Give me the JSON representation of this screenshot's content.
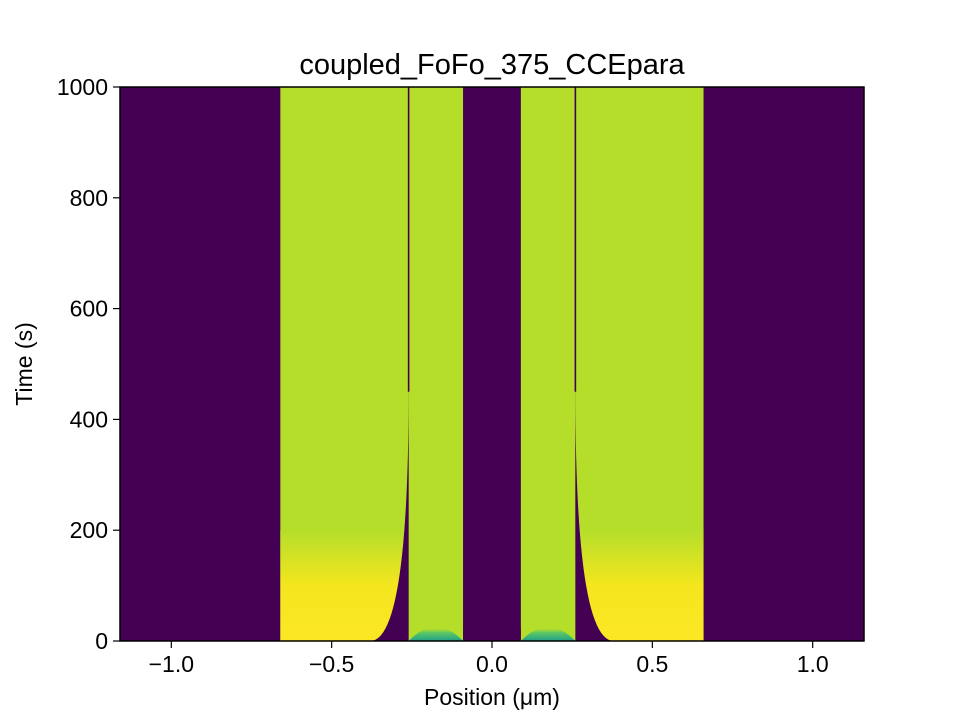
{
  "chart_data": {
    "type": "heatmap",
    "title": "coupled_FoFo_375_CCEpara",
    "xlabel": "Position (μm)",
    "ylabel": "Time (s)",
    "xlim": [
      -1.16,
      1.16
    ],
    "ylim": [
      0,
      1000
    ],
    "xticks": [
      -1.0,
      -0.5,
      0.0,
      0.5,
      1.0
    ],
    "xtick_labels": [
      "−1.0",
      "−0.5",
      "0.0",
      "0.5",
      "1.0"
    ],
    "yticks": [
      0,
      200,
      400,
      600,
      800,
      1000
    ],
    "ytick_labels": [
      "0",
      "200",
      "400",
      "600",
      "800",
      "1000"
    ],
    "grid": false,
    "colormap": "viridis",
    "colors": {
      "background_region": "#440154",
      "filled_region": "#b5de2b",
      "early_time_peak": "#fde725",
      "transition_dip": "#1f9e89"
    },
    "regions": [
      {
        "x_range": [
          -1.16,
          -0.66
        ],
        "level": "low"
      },
      {
        "x_range": [
          -0.66,
          -0.26
        ],
        "level": "high",
        "early_time_peak": true
      },
      {
        "x_range": [
          -0.26,
          -0.09
        ],
        "level": "high"
      },
      {
        "x_range": [
          -0.09,
          0.09
        ],
        "level": "low"
      },
      {
        "x_range": [
          0.09,
          0.26
        ],
        "level": "high"
      },
      {
        "x_range": [
          0.26,
          0.66
        ],
        "level": "high",
        "early_time_peak": true
      },
      {
        "x_range": [
          0.66,
          1.16
        ],
        "level": "low"
      }
    ],
    "interfaces": [
      {
        "x_start": -0.38,
        "x_end": -0.26,
        "t_end": 450
      },
      {
        "x_start": 0.38,
        "x_end": 0.26,
        "t_end": 450
      }
    ]
  }
}
